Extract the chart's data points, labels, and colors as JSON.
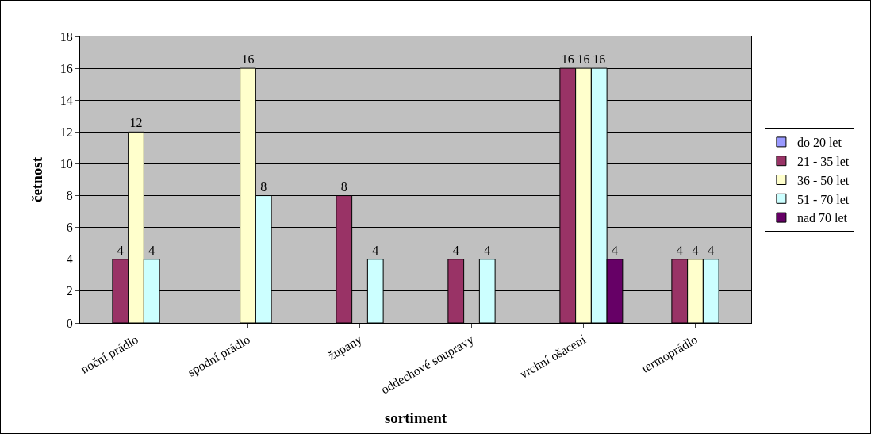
{
  "chart_data": {
    "type": "bar",
    "xlabel": "sortiment",
    "ylabel": "četnost",
    "categories": [
      "noční prádlo",
      "spodní prádlo",
      "župany",
      "oddechové soupravy",
      "vrchní ošacení",
      "termoprádlo"
    ],
    "series": [
      {
        "name": "do 20 let",
        "color": "#9999ff",
        "values": [
          null,
          null,
          null,
          null,
          null,
          null
        ]
      },
      {
        "name": "21 - 35 let",
        "color": "#993366",
        "values": [
          4,
          null,
          8,
          4,
          16,
          4
        ]
      },
      {
        "name": "36 - 50 let",
        "color": "#ffffcc",
        "values": [
          12,
          16,
          null,
          null,
          16,
          4
        ]
      },
      {
        "name": "51 - 70 let",
        "color": "#ccffff",
        "values": [
          4,
          8,
          4,
          4,
          16,
          4
        ]
      },
      {
        "name": "nad 70 let",
        "color": "#660066",
        "values": [
          null,
          null,
          null,
          null,
          4,
          null
        ]
      }
    ],
    "ylim": [
      0,
      18
    ],
    "yticks": [
      0,
      2,
      4,
      6,
      8,
      10,
      12,
      14,
      16,
      18
    ],
    "grid": "y",
    "legend": "right",
    "data_labels": true
  }
}
